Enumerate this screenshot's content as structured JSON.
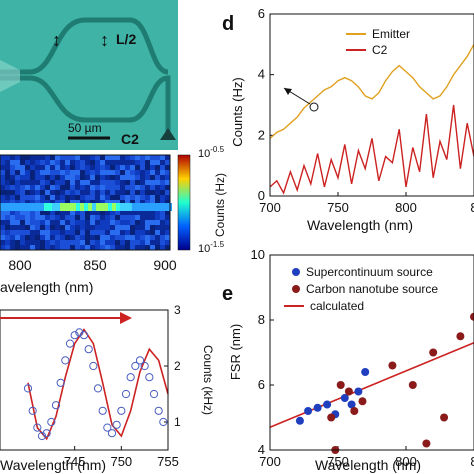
{
  "micrograph": {
    "background": "#3fb3a6",
    "waveguide_color": "#2a8a80",
    "label_l2": "L/2",
    "label_c2": "C2",
    "scale_bar": "50 µm",
    "double_arrow": "↕"
  },
  "heatmap": {
    "colorbar_label": "Counts (Hz)",
    "cb_top_base": "10",
    "cb_top_exp": "-0.5",
    "cb_bottom_base": "10",
    "cb_bottom_exp": "-1.5",
    "x_ticks": [
      "800",
      "850",
      "900"
    ],
    "x_label": "avelength (nm)"
  },
  "panel_d": {
    "letter": "d",
    "chart_data": {
      "type": "line",
      "xlabel": "Wavelength (nm)",
      "ylabel": "Counts (Hz)",
      "xlim": [
        700,
        850
      ],
      "ylim": [
        0,
        6
      ],
      "x_ticks": [
        "700",
        "750",
        "800",
        "8"
      ],
      "y_ticks": [
        "0",
        "2",
        "4",
        "6"
      ],
      "series": [
        {
          "name": "Emitter",
          "color": "#e0a020",
          "x": [
            700,
            705,
            710,
            715,
            720,
            725,
            730,
            735,
            740,
            745,
            750,
            755,
            760,
            765,
            770,
            775,
            780,
            785,
            790,
            795,
            800,
            805,
            810,
            815,
            820,
            825,
            830,
            835,
            840,
            845,
            850
          ],
          "y": [
            1.9,
            2.1,
            2.2,
            2.4,
            2.6,
            2.9,
            3.1,
            3.3,
            3.5,
            3.6,
            3.8,
            3.9,
            3.8,
            3.6,
            3.3,
            3.2,
            3.4,
            3.8,
            4.1,
            4.3,
            4.1,
            3.9,
            3.6,
            3.4,
            3.2,
            3.3,
            3.6,
            4.0,
            4.3,
            4.6,
            5.0
          ]
        },
        {
          "name": "C2",
          "color": "#cc2222",
          "x": [
            700,
            705,
            710,
            715,
            720,
            725,
            730,
            735,
            740,
            745,
            750,
            755,
            760,
            765,
            770,
            775,
            780,
            785,
            790,
            795,
            800,
            805,
            810,
            815,
            820,
            825,
            830,
            835,
            840,
            845,
            850
          ],
          "y": [
            0.3,
            0.5,
            0.1,
            0.8,
            0.2,
            1.0,
            0.4,
            1.4,
            0.3,
            1.2,
            0.6,
            1.7,
            0.4,
            1.5,
            0.9,
            1.9,
            0.5,
            1.3,
            1.1,
            2.2,
            0.3,
            1.6,
            0.8,
            2.7,
            0.6,
            1.8,
            1.2,
            3.0,
            0.9,
            2.4,
            1.3
          ]
        }
      ],
      "legend_position": "top-right"
    }
  },
  "panel_e": {
    "letter": "e",
    "chart_data": {
      "type": "scatter",
      "xlabel": "Wavelength (nm)",
      "ylabel": "FSR (nm)",
      "xlim": [
        700,
        850
      ],
      "ylim": [
        4,
        10
      ],
      "x_ticks": [
        "700",
        "750",
        "800",
        "8"
      ],
      "y_ticks": [
        "4",
        "6",
        "8",
        "10"
      ],
      "series": [
        {
          "name": "Supercontinuum source",
          "color": "#1f3fbf",
          "x": [
            722,
            728,
            735,
            742,
            748,
            755,
            760,
            765,
            770
          ],
          "y": [
            4.9,
            5.2,
            5.3,
            5.4,
            5.1,
            5.6,
            5.4,
            5.8,
            6.4
          ]
        },
        {
          "name": "Carbon nanotube source",
          "color": "#8b1a1a",
          "x": [
            745,
            748,
            752,
            758,
            762,
            768,
            790,
            805,
            815,
            820,
            828,
            840,
            850
          ],
          "y": [
            5.0,
            4.0,
            6.0,
            5.8,
            5.2,
            5.5,
            6.6,
            6.0,
            4.2,
            7.0,
            5.0,
            7.5,
            8.1
          ]
        },
        {
          "name": "calculated",
          "color": "#cc2222",
          "line": true,
          "x": [
            700,
            850
          ],
          "y": [
            4.7,
            7.3
          ]
        }
      ],
      "legend_position": "top-left"
    }
  },
  "panel_spec": {
    "chart_data": {
      "type": "line",
      "xlabel": "Wavelength (nm)",
      "y2label": "Counts (kHz)",
      "xlim": [
        740,
        755
      ],
      "y2lim": [
        0.5,
        3
      ],
      "x_ticks": [
        "745",
        "750",
        "755"
      ],
      "y2_ticks": [
        "1",
        "2",
        "3"
      ],
      "series": [
        {
          "name": "",
          "color": "#4a5ec0",
          "marker": "circle",
          "x": [
            740,
            740.5,
            741,
            741.5,
            742,
            742.5,
            743,
            743.5,
            744,
            744.5,
            745,
            745.5,
            746,
            746.5,
            747,
            747.5,
            748,
            748.5,
            749,
            749.5,
            750,
            750.5,
            751,
            751.5,
            752,
            752.5,
            753,
            753.5,
            754,
            754.5
          ],
          "y": [
            1.6,
            1.2,
            0.9,
            0.75,
            0.8,
            1.0,
            1.3,
            1.7,
            2.1,
            2.4,
            2.55,
            2.6,
            2.55,
            2.3,
            2.0,
            1.6,
            1.2,
            0.9,
            0.8,
            0.95,
            1.2,
            1.5,
            1.8,
            2.0,
            2.1,
            2.0,
            1.8,
            1.5,
            1.2,
            1.0
          ]
        },
        {
          "name": "",
          "color": "#cc2222",
          "x": [
            740,
            741,
            742,
            743,
            744,
            745,
            746,
            747,
            748,
            749,
            750,
            751,
            752,
            753,
            754,
            755
          ],
          "y": [
            1.7,
            0.9,
            0.7,
            1.1,
            1.8,
            2.4,
            2.65,
            2.4,
            1.7,
            0.95,
            0.75,
            1.2,
            1.9,
            2.3,
            2.1,
            1.5
          ]
        }
      ]
    }
  }
}
